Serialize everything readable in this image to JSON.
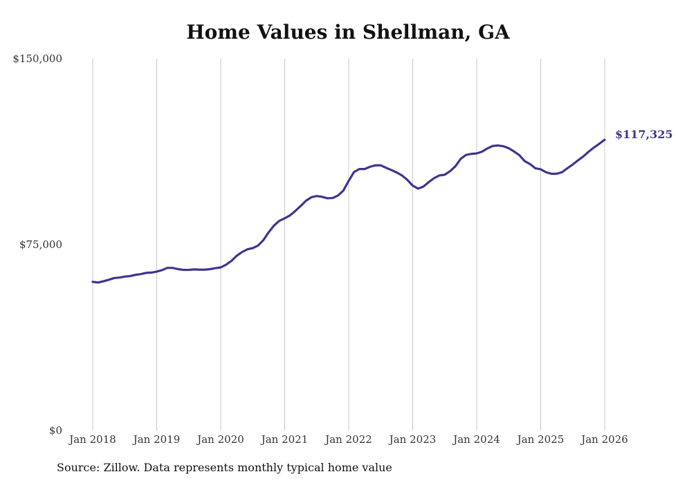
{
  "chart_data": {
    "type": "line",
    "title": "Home Values in Shellman, GA",
    "xlabel": "",
    "ylabel": "",
    "ylim": [
      0,
      150000
    ],
    "y_ticks": [
      {
        "value": 0,
        "label": "$0"
      },
      {
        "value": 75000,
        "label": "$75,000"
      },
      {
        "value": 150000,
        "label": "$150,000"
      }
    ],
    "x_ticks": [
      {
        "index": 0,
        "label": "Jan 2018"
      },
      {
        "index": 12,
        "label": "Jan 2019"
      },
      {
        "index": 24,
        "label": "Jan 2020"
      },
      {
        "index": 36,
        "label": "Jan 2021"
      },
      {
        "index": 48,
        "label": "Jan 2022"
      },
      {
        "index": 60,
        "label": "Jan 2023"
      },
      {
        "index": 72,
        "label": "Jan 2024"
      },
      {
        "index": 84,
        "label": "Jan 2025"
      },
      {
        "index": 96,
        "label": "Jan 2026"
      }
    ],
    "grid": "vertical",
    "series": [
      {
        "name": "Typical home value",
        "color": "#3d3590",
        "start": "Jan 2018",
        "frequency": "monthly",
        "values": [
          60000,
          59700,
          60200,
          60800,
          61500,
          61700,
          62100,
          62300,
          62800,
          63100,
          63600,
          63700,
          64100,
          64700,
          65600,
          65600,
          65100,
          64800,
          64800,
          65000,
          64900,
          64900,
          65100,
          65500,
          65800,
          66900,
          68400,
          70500,
          72000,
          73100,
          73600,
          74600,
          76800,
          80000,
          82700,
          84600,
          85600,
          86800,
          88600,
          90600,
          92700,
          94100,
          94600,
          94300,
          93700,
          93800,
          94800,
          96800,
          100700,
          104300,
          105500,
          105500,
          106400,
          107000,
          107000,
          106000,
          105100,
          104100,
          102900,
          101100,
          98800,
          97600,
          98400,
          100200,
          101800,
          102900,
          103200,
          104600,
          106600,
          109600,
          111200,
          111600,
          111800,
          112500,
          113800,
          114800,
          115000,
          114700,
          113900,
          112600,
          111100,
          108700,
          107500,
          105800,
          105400,
          104200,
          103600,
          103600,
          104200,
          105800,
          107300,
          109000,
          110600,
          112500,
          114200,
          115700,
          117325
        ]
      }
    ],
    "end_label": "$117,325"
  },
  "source": "Source: Zillow. Data represents monthly typical home value"
}
